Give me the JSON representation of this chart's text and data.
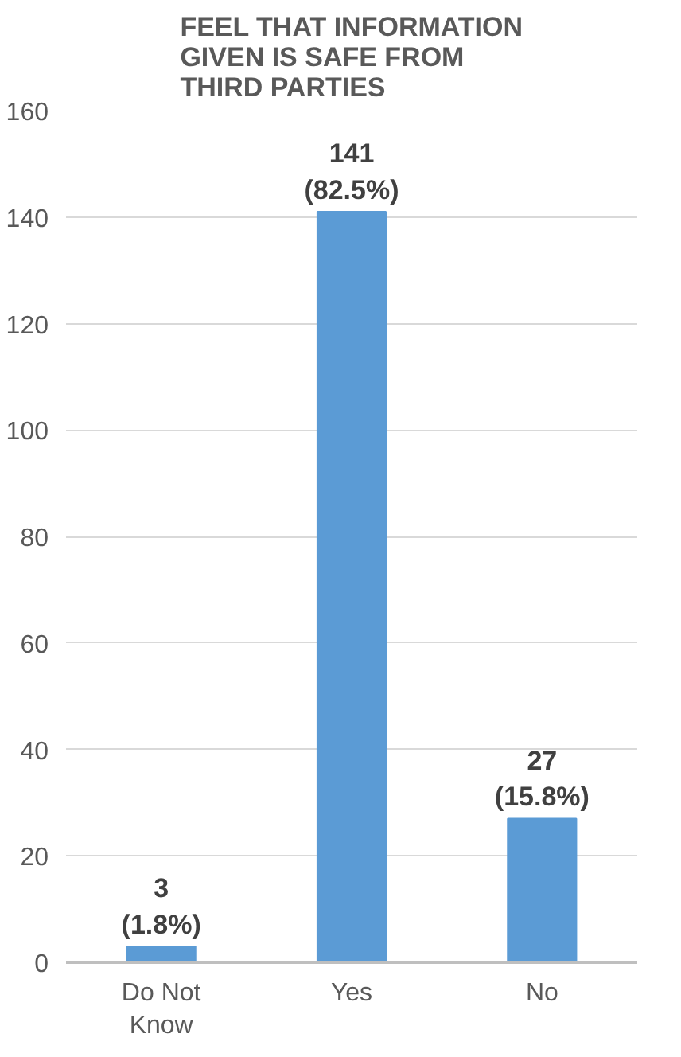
{
  "chart_data": {
    "type": "bar",
    "title": "FEEL THAT INFORMATION GIVEN IS SAFE FROM THIRD PARTIES",
    "categories": [
      "Do Not Know",
      "Yes",
      "No"
    ],
    "values": [
      3,
      141,
      27
    ],
    "color": "#5b9bd5",
    "value_labels": [
      "3 (1.8%)",
      "141 (82.5%)",
      "27 (15.8%)"
    ],
    "ylim": [
      0,
      160
    ],
    "yticks": [
      0,
      20,
      40,
      60,
      80,
      100,
      120,
      140,
      160
    ],
    "grid": "y"
  }
}
